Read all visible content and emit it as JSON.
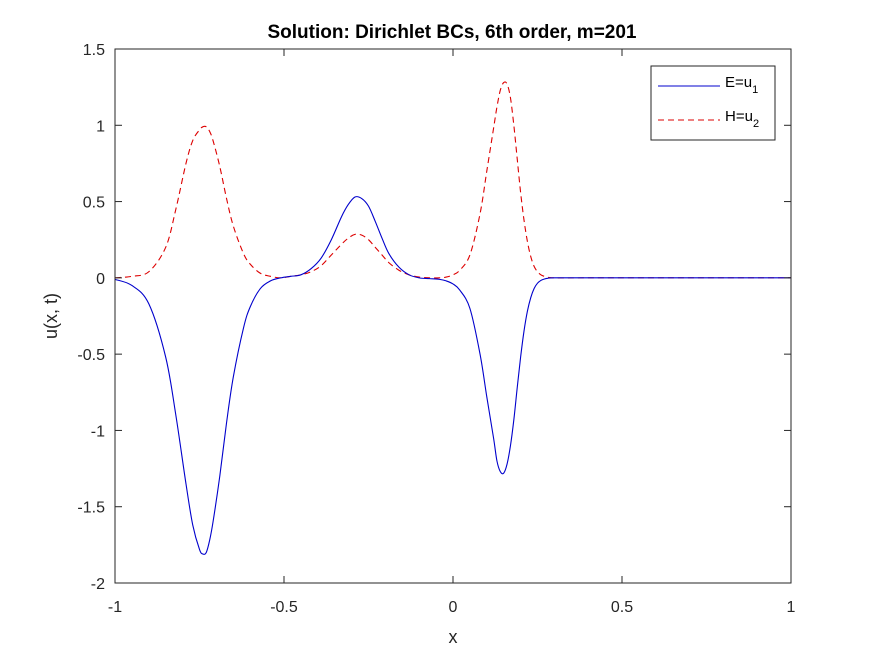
{
  "chart_data": {
    "type": "line",
    "title": "Solution: Dirichlet BCs, 6th order, m=201",
    "xlabel": "x",
    "ylabel": "u(x, t)",
    "xlim": [
      -1,
      1
    ],
    "ylim": [
      -2,
      1.5
    ],
    "xticks": [
      -1,
      -0.5,
      0,
      0.5,
      1
    ],
    "xtick_labels": [
      "-1",
      "-0.5",
      "0",
      "0.5",
      "1"
    ],
    "yticks": [
      -2,
      -1.5,
      -1,
      -0.5,
      0,
      0.5,
      1,
      1.5
    ],
    "ytick_labels": [
      "-2",
      "-1.5",
      "-1",
      "-0.5",
      "0",
      "0.5",
      "1",
      "1.5"
    ],
    "grid": false,
    "legend_position": "top-right",
    "series": [
      {
        "name": "E=u",
        "name_subscript": "1",
        "color": "#0000cc",
        "line_style": "solid",
        "x": [
          -1,
          -0.95,
          -0.9,
          -0.85,
          -0.82,
          -0.79,
          -0.77,
          -0.75,
          -0.74,
          -0.73,
          -0.72,
          -0.71,
          -0.69,
          -0.67,
          -0.65,
          -0.62,
          -0.6,
          -0.57,
          -0.54,
          -0.51,
          -0.48,
          -0.45,
          -0.42,
          -0.39,
          -0.36,
          -0.33,
          -0.31,
          -0.29,
          -0.27,
          -0.25,
          -0.23,
          -0.21,
          -0.19,
          -0.16,
          -0.13,
          -0.1,
          -0.07,
          -0.04,
          -0.02,
          0,
          0.02,
          0.05,
          0.08,
          0.1,
          0.12,
          0.13,
          0.14,
          0.15,
          0.16,
          0.17,
          0.18,
          0.19,
          0.2,
          0.21,
          0.22,
          0.23,
          0.24,
          0.25,
          0.26,
          0.27,
          0.28,
          0.3,
          0.4,
          0.6,
          0.8,
          1.0
        ],
        "y": [
          -0.01,
          -0.05,
          -0.17,
          -0.52,
          -0.9,
          -1.35,
          -1.62,
          -1.78,
          -1.81,
          -1.8,
          -1.72,
          -1.6,
          -1.3,
          -0.95,
          -0.65,
          -0.33,
          -0.19,
          -0.07,
          -0.02,
          0.0,
          0.01,
          0.02,
          0.06,
          0.13,
          0.25,
          0.4,
          0.48,
          0.53,
          0.52,
          0.47,
          0.37,
          0.26,
          0.16,
          0.07,
          0.02,
          0.0,
          -0.005,
          -0.01,
          -0.02,
          -0.04,
          -0.08,
          -0.2,
          -0.5,
          -0.78,
          -1.05,
          -1.2,
          -1.27,
          -1.28,
          -1.22,
          -1.1,
          -0.93,
          -0.72,
          -0.52,
          -0.35,
          -0.22,
          -0.13,
          -0.07,
          -0.035,
          -0.017,
          -0.008,
          -0.003,
          0.0,
          0.0,
          0.0,
          0.0,
          0.0
        ]
      },
      {
        "name": "H=u",
        "name_subscript": "2",
        "color": "#dd0000",
        "line_style": "dashed",
        "x": [
          -1,
          -0.95,
          -0.9,
          -0.85,
          -0.82,
          -0.79,
          -0.77,
          -0.75,
          -0.74,
          -0.73,
          -0.72,
          -0.71,
          -0.69,
          -0.67,
          -0.65,
          -0.62,
          -0.6,
          -0.57,
          -0.54,
          -0.51,
          -0.48,
          -0.45,
          -0.42,
          -0.39,
          -0.36,
          -0.33,
          -0.31,
          -0.29,
          -0.27,
          -0.25,
          -0.23,
          -0.21,
          -0.19,
          -0.16,
          -0.13,
          -0.1,
          -0.07,
          -0.04,
          -0.02,
          0,
          0.02,
          0.05,
          0.08,
          0.1,
          0.12,
          0.13,
          0.14,
          0.15,
          0.16,
          0.17,
          0.18,
          0.19,
          0.2,
          0.21,
          0.22,
          0.23,
          0.24,
          0.25,
          0.26,
          0.27,
          0.28,
          0.3,
          0.4,
          0.6,
          0.8,
          1.0
        ],
        "y": [
          0.0,
          0.01,
          0.04,
          0.2,
          0.45,
          0.75,
          0.9,
          0.97,
          0.99,
          0.99,
          0.96,
          0.9,
          0.73,
          0.52,
          0.34,
          0.16,
          0.09,
          0.03,
          0.01,
          0.0,
          0.01,
          0.02,
          0.04,
          0.08,
          0.15,
          0.22,
          0.26,
          0.285,
          0.28,
          0.25,
          0.2,
          0.15,
          0.1,
          0.05,
          0.02,
          0.005,
          0.0,
          0.0,
          0.005,
          0.02,
          0.05,
          0.15,
          0.42,
          0.7,
          0.98,
          1.12,
          1.23,
          1.28,
          1.27,
          1.18,
          1.0,
          0.78,
          0.56,
          0.38,
          0.24,
          0.14,
          0.075,
          0.04,
          0.02,
          0.01,
          0.004,
          0.0,
          0.0,
          0.0,
          0.0,
          0.0
        ]
      }
    ]
  }
}
